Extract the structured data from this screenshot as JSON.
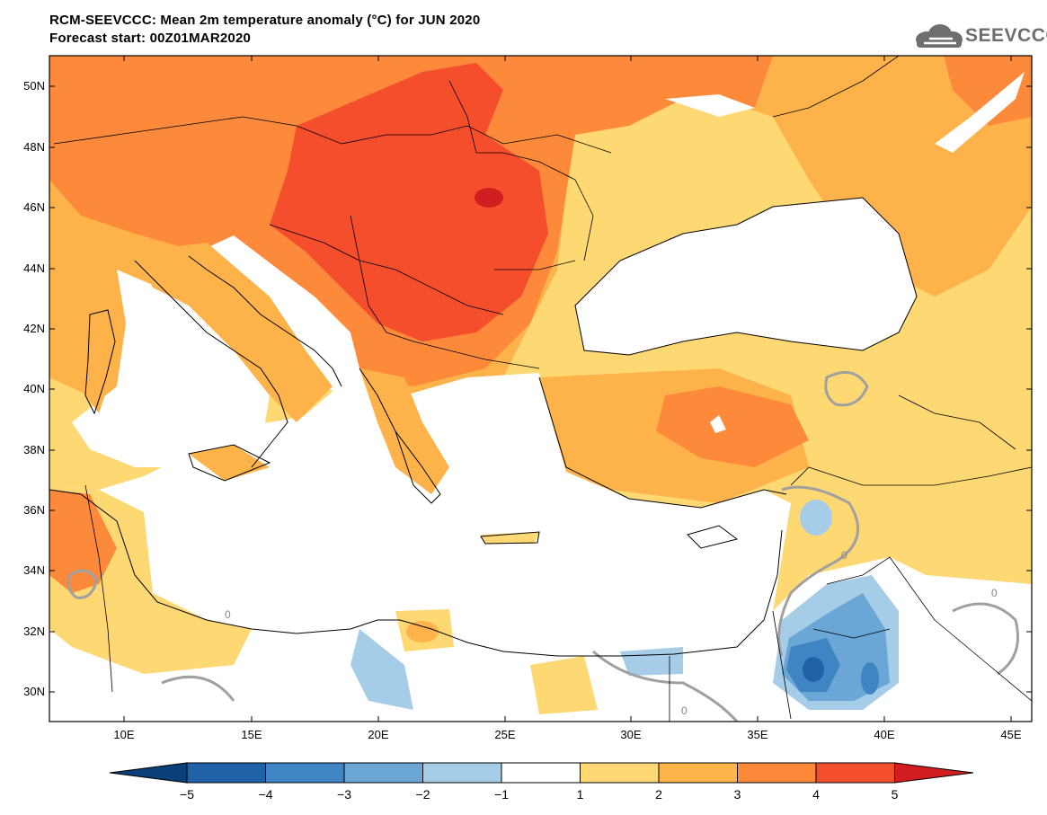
{
  "title": {
    "line1": "RCM-SEEVCCC: Mean 2m temperature anomaly (°C) for JUN 2020",
    "line2": "Forecast start: 00Z01MAR2020"
  },
  "logo": {
    "text": "SEEVCCC",
    "icon": "cloud-icon"
  },
  "map": {
    "region": "Eastern Mediterranean / Balkans / Anatolia",
    "lon_range": [
      7,
      45.6
    ],
    "lat_range": [
      29,
      51
    ],
    "lat_ticks": [
      "50N",
      "48N",
      "46N",
      "44N",
      "42N",
      "40N",
      "38N",
      "36N",
      "34N",
      "32N",
      "30N"
    ],
    "lon_ticks": [
      "10E",
      "15E",
      "20E",
      "25E",
      "30E",
      "35E",
      "40E",
      "45E"
    ],
    "contour_label": "0",
    "dominant_anomaly": "warm (+2 to +4 °C) over the Balkans and Pannonian basin",
    "cold_anomaly": "-2 to -5 °C over Jordan / northern Saudi Arabia"
  },
  "colorbar": {
    "ticks": [
      "−5",
      "−4",
      "−3",
      "−2",
      "−1",
      "1",
      "2",
      "3",
      "4",
      "5"
    ],
    "colors": {
      "lt-5": "#0b3f7a",
      "-5_-4": "#1f62a8",
      "-4_-3": "#3f85c3",
      "-3_-2": "#6aa7d6",
      "-2_-1": "#a6cde7",
      "-1_1": "#ffffff",
      "1_2": "#fed872",
      "2_3": "#fdb24a",
      "3_4": "#fd8a3a",
      "4_5": "#f54e2c",
      "gt5": "#d21e21"
    }
  }
}
